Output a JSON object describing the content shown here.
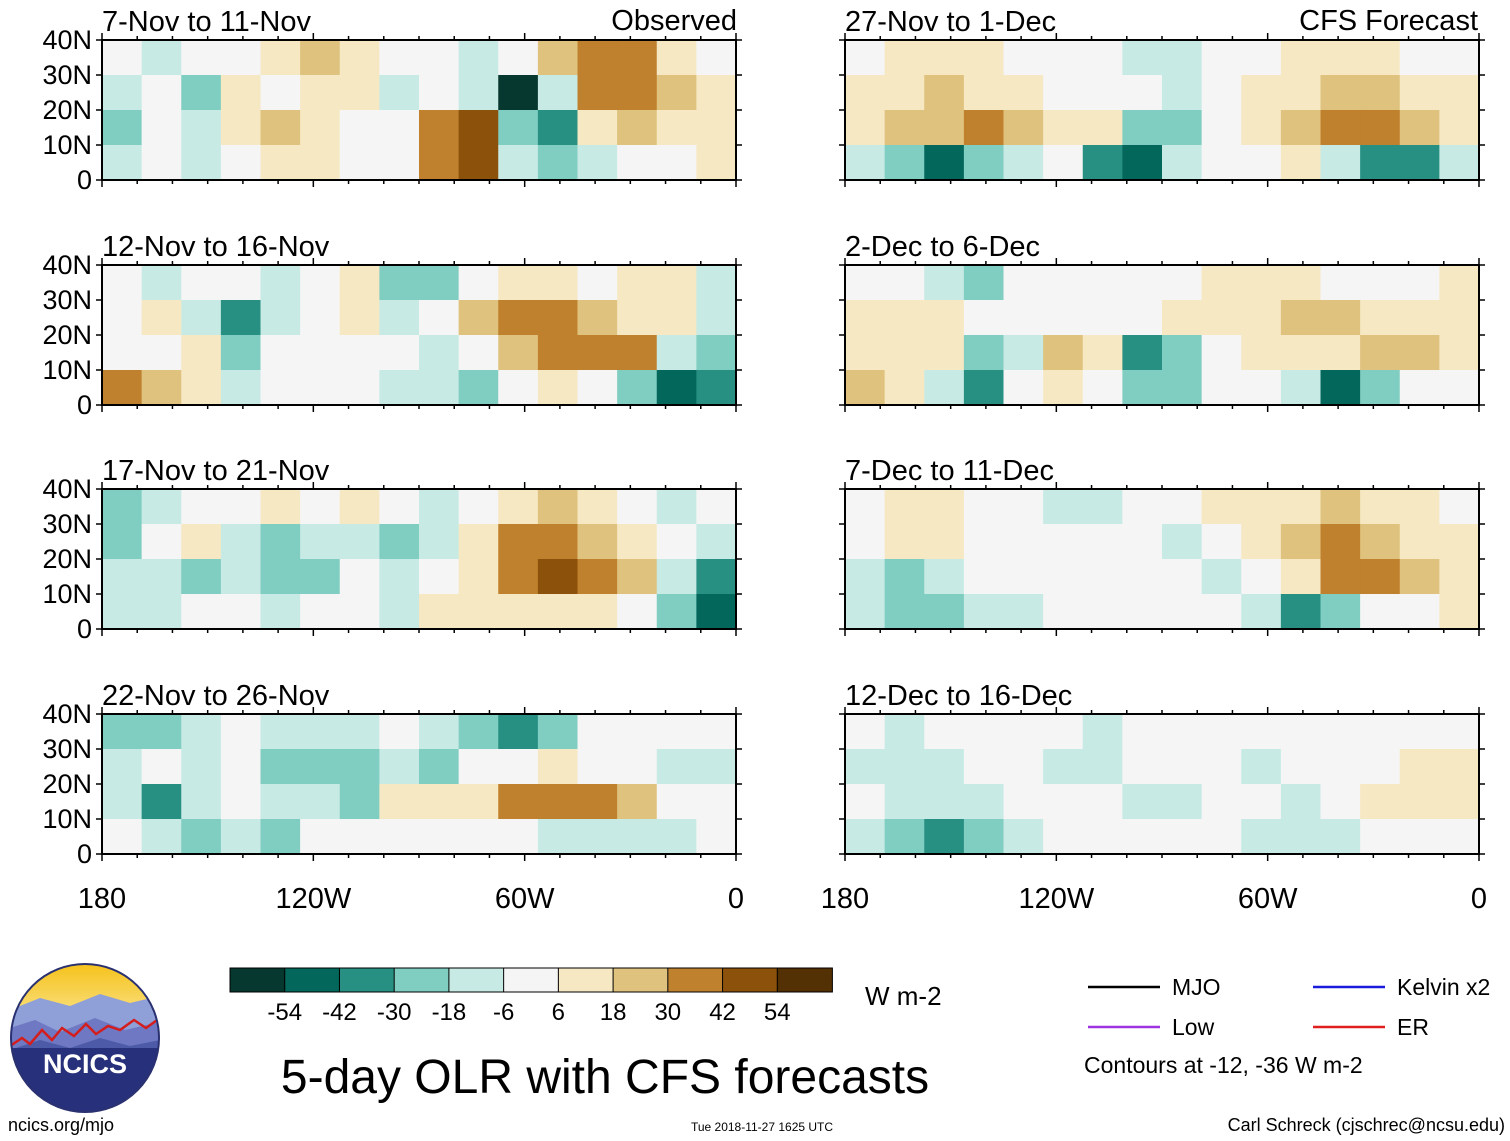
{
  "header": {
    "source_left": "Observed",
    "source_right": "CFS Forecast"
  },
  "chart_data": {
    "type": "heatmap",
    "title": "5-day OLR with CFS forecasts",
    "units": "W m-2",
    "xlim": [
      -180,
      0
    ],
    "ylim": [
      0,
      40
    ],
    "x_ticks": [
      "180",
      "120W",
      "60W",
      "0"
    ],
    "y_ticks": [
      "0",
      "10N",
      "20N",
      "30N",
      "40N"
    ],
    "panels": [
      {
        "label": "7-Nov to 11-Nov",
        "kind": "Observed",
        "grid": [
          [
            0,
            -12,
            -4,
            2,
            10,
            18,
            10,
            -6,
            4,
            -10,
            -2,
            22,
            34,
            30,
            16,
            4
          ],
          [
            -10,
            -2,
            -30,
            8,
            4,
            12,
            6,
            -8,
            -2,
            -14,
            -56,
            -8,
            30,
            38,
            28,
            12
          ],
          [
            -22,
            -6,
            -16,
            12,
            26,
            10,
            4,
            -6,
            36,
            44,
            -30,
            -40,
            6,
            22,
            10,
            14
          ],
          [
            -16,
            4,
            -8,
            -4,
            14,
            8,
            2,
            4,
            38,
            50,
            -10,
            -22,
            -12,
            4,
            2,
            8
          ]
        ]
      },
      {
        "label": "12-Nov to 16-Nov",
        "kind": "Observed",
        "grid": [
          [
            -6,
            -10,
            2,
            -4,
            -14,
            -2,
            10,
            -22,
            -30,
            -4,
            10,
            6,
            -6,
            8,
            12,
            -12
          ],
          [
            -4,
            10,
            -8,
            -36,
            -10,
            4,
            8,
            -10,
            -2,
            18,
            30,
            34,
            28,
            10,
            6,
            -8
          ],
          [
            4,
            -6,
            6,
            -30,
            -6,
            2,
            4,
            -4,
            -12,
            4,
            22,
            30,
            40,
            34,
            -8,
            -20
          ],
          [
            30,
            22,
            10,
            -10,
            -4,
            -6,
            -2,
            -8,
            -14,
            -20,
            -6,
            10,
            4,
            -30,
            -54,
            -40
          ]
        ]
      },
      {
        "label": "17-Nov to 21-Nov",
        "kind": "Observed",
        "grid": [
          [
            -30,
            -8,
            0,
            -2,
            8,
            4,
            10,
            -6,
            -14,
            4,
            8,
            18,
            10,
            0,
            -12,
            -6
          ],
          [
            -22,
            -4,
            6,
            -12,
            -24,
            -14,
            -8,
            -20,
            -8,
            10,
            34,
            40,
            28,
            12,
            -4,
            -10
          ],
          [
            -10,
            -18,
            -30,
            -14,
            -28,
            -20,
            -6,
            -12,
            -4,
            8,
            30,
            44,
            38,
            20,
            -16,
            -40
          ],
          [
            -12,
            -8,
            -4,
            2,
            -10,
            -6,
            -2,
            -8,
            6,
            14,
            10,
            14,
            8,
            -4,
            -30,
            -48
          ]
        ]
      },
      {
        "label": "22-Nov to 26-Nov",
        "kind": "Observed",
        "grid": [
          [
            -22,
            -30,
            -16,
            -4,
            -8,
            -18,
            -10,
            -2,
            -14,
            -20,
            -34,
            -20,
            -6,
            4,
            -2,
            -4
          ],
          [
            -8,
            -4,
            -12,
            -6,
            -26,
            -30,
            -20,
            -14,
            -24,
            -6,
            4,
            8,
            2,
            -6,
            -10,
            -12
          ],
          [
            -12,
            -40,
            -10,
            -2,
            -18,
            -14,
            -20,
            6,
            10,
            14,
            32,
            40,
            30,
            24,
            -6,
            4
          ],
          [
            -4,
            -16,
            -24,
            -10,
            -20,
            -6,
            -4,
            2,
            4,
            -6,
            -4,
            -18,
            -12,
            -14,
            -8,
            -2
          ]
        ]
      },
      {
        "label": "27-Nov to 1-Dec",
        "kind": "CFS Forecast",
        "grid": [
          [
            4,
            10,
            16,
            6,
            -4,
            2,
            -6,
            -14,
            -18,
            -6,
            4,
            10,
            8,
            6,
            2,
            4
          ],
          [
            8,
            14,
            20,
            12,
            6,
            4,
            -2,
            -6,
            -10,
            -2,
            8,
            16,
            26,
            24,
            14,
            10
          ],
          [
            10,
            18,
            28,
            36,
            24,
            14,
            8,
            -28,
            -20,
            4,
            12,
            20,
            32,
            38,
            28,
            14
          ],
          [
            -18,
            -30,
            -52,
            -22,
            -10,
            -6,
            -40,
            -50,
            -14,
            -4,
            2,
            6,
            -8,
            -32,
            -40,
            -10
          ]
        ]
      },
      {
        "label": "2-Dec to 6-Dec",
        "kind": "CFS Forecast",
        "grid": [
          [
            0,
            4,
            -14,
            -24,
            -6,
            2,
            4,
            0,
            2,
            6,
            10,
            8,
            2,
            -2,
            -4,
            8
          ],
          [
            6,
            12,
            10,
            2,
            -2,
            4,
            2,
            4,
            6,
            10,
            16,
            20,
            18,
            14,
            10,
            14
          ],
          [
            10,
            14,
            6,
            -30,
            -10,
            18,
            16,
            -36,
            -20,
            4,
            8,
            12,
            16,
            22,
            18,
            10
          ],
          [
            18,
            6,
            -14,
            -40,
            4,
            12,
            -6,
            -28,
            -30,
            4,
            0,
            -8,
            -50,
            -20,
            -4,
            2
          ]
        ]
      },
      {
        "label": "7-Dec to 11-Dec",
        "kind": "CFS Forecast",
        "grid": [
          [
            4,
            12,
            8,
            2,
            -6,
            -12,
            -10,
            -4,
            2,
            6,
            12,
            16,
            20,
            14,
            6,
            4
          ],
          [
            -4,
            6,
            10,
            4,
            -2,
            -6,
            -2,
            4,
            -8,
            -4,
            10,
            20,
            30,
            24,
            12,
            8
          ],
          [
            -16,
            -22,
            -10,
            2,
            4,
            -6,
            -2,
            4,
            -4,
            -8,
            4,
            16,
            34,
            30,
            18,
            14
          ],
          [
            -8,
            -20,
            -30,
            -14,
            -8,
            -4,
            -2,
            2,
            4,
            -6,
            -14,
            -42,
            -20,
            -2,
            4,
            6
          ]
        ]
      },
      {
        "label": "12-Dec to 16-Dec",
        "kind": "CFS Forecast",
        "grid": [
          [
            -6,
            -10,
            -4,
            2,
            -4,
            -2,
            -8,
            -6,
            4,
            -4,
            -6,
            -2,
            -6,
            -4,
            -2,
            4
          ],
          [
            -10,
            -16,
            -10,
            -2,
            -4,
            -8,
            -10,
            -2,
            -4,
            -2,
            -10,
            -6,
            -4,
            2,
            8,
            10
          ],
          [
            -4,
            -12,
            -18,
            -10,
            -6,
            -2,
            -4,
            -8,
            -12,
            -4,
            -2,
            -8,
            4,
            12,
            14,
            10
          ],
          [
            -10,
            -24,
            -36,
            -22,
            -12,
            -4,
            -2,
            -4,
            -6,
            -2,
            -10,
            -16,
            -8,
            4,
            2,
            -4
          ]
        ]
      }
    ],
    "colorbar": {
      "ticks": [
        "-54",
        "-42",
        "-30",
        "-18",
        "-6",
        "6",
        "18",
        "30",
        "42",
        "54"
      ],
      "colors": [
        "#06382f",
        "#03685b",
        "#289083",
        "#80cdc1",
        "#c7eae5",
        "#f5f5f5",
        "#f6e8c3",
        "#dfc27d",
        "#bf812d",
        "#8c510a",
        "#543005"
      ]
    },
    "contour_legend": {
      "items": [
        {
          "name": "MJO",
          "color": "#000000"
        },
        {
          "name": "Kelvin x2",
          "color": "#1b1bdc"
        },
        {
          "name": "Low",
          "color": "#a033e0"
        },
        {
          "name": "ER",
          "color": "#e01f1f"
        }
      ],
      "note": "Contours at -12, -36 W m-2"
    }
  },
  "footer": {
    "site": "ncics.org/mjo",
    "timestamp": "Tue 2018-11-27 1625 UTC",
    "author": "Carl Schreck (cjschrec@ncsu.edu)",
    "logo_text": "NCICS"
  }
}
